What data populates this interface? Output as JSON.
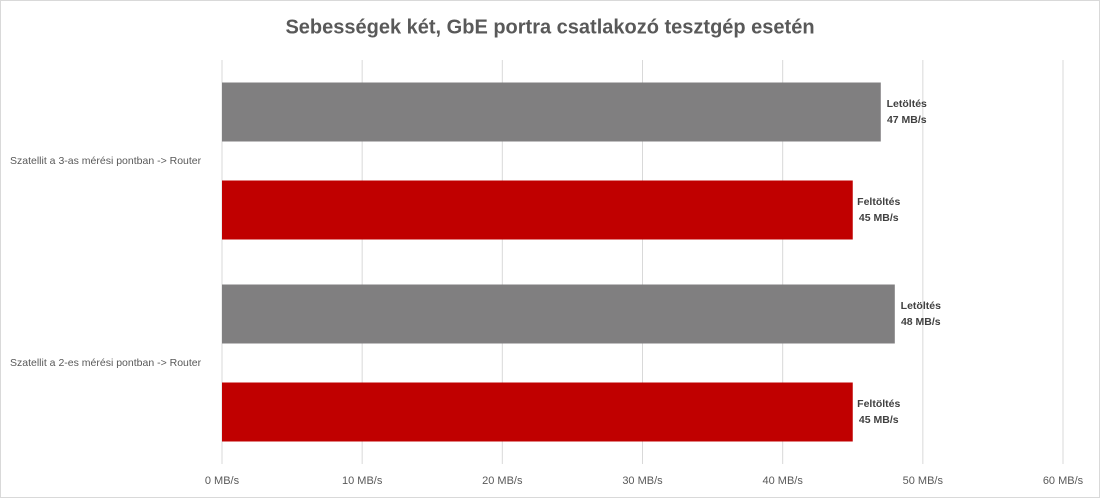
{
  "chart_data": {
    "type": "hbar",
    "title": "Sebességek két, GbE portra csatlakozó tesztgép esetén",
    "categories": [
      "Szatellit a 3-as mérési pontban -> Router",
      "Szatellit a 2-es mérési pontban -> Router"
    ],
    "series": [
      {
        "name": "Letöltés",
        "color": "#807f80",
        "values": [
          47,
          48
        ],
        "value_labels": [
          "47 MB/s",
          "48 MB/s"
        ]
      },
      {
        "name": "Feltöltés",
        "color": "#c00000",
        "values": [
          45,
          45
        ],
        "value_labels": [
          "45 MB/s",
          "45 MB/s"
        ]
      }
    ],
    "xlim": [
      0,
      60
    ],
    "xticks": [
      {
        "value": 0,
        "label": "0 MB/s"
      },
      {
        "value": 10,
        "label": "10 MB/s"
      },
      {
        "value": 20,
        "label": "20 MB/s"
      },
      {
        "value": 30,
        "label": "30 MB/s"
      },
      {
        "value": 40,
        "label": "40 MB/s"
      },
      {
        "value": 50,
        "label": "50 MB/s"
      },
      {
        "value": 60,
        "label": "60 MB/s"
      }
    ],
    "grid": true
  }
}
